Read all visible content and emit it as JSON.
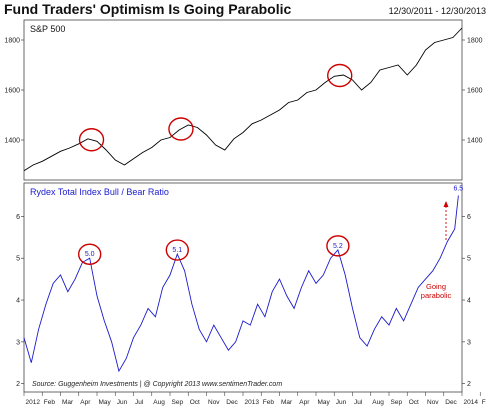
{
  "chart_data": [
    {
      "type": "line",
      "title": "Fund Traders' Optimism Is Going Parabolic",
      "date_range": "12/30/2011 - 12/30/2013",
      "panel_label": "S&P 500",
      "color": "#000000",
      "ylim": [
        1240,
        1880
      ],
      "yticks": [
        1400,
        1600,
        1800
      ],
      "x_start": "2012-01",
      "x_end": "2014-01",
      "x": [
        0,
        0.5,
        1,
        1.5,
        2,
        2.5,
        3,
        3.5,
        4,
        4.5,
        5,
        5.5,
        6,
        6.5,
        7,
        7.5,
        8,
        8.5,
        9,
        9.5,
        10,
        10.5,
        11,
        11.5,
        12,
        12.5,
        13,
        13.5,
        14,
        14.5,
        15,
        15.5,
        16,
        16.5,
        17,
        17.5,
        18,
        18.5,
        19,
        19.5,
        20,
        20.5,
        21,
        21.5,
        22,
        22.5,
        23,
        23.5,
        24
      ],
      "values": [
        1277,
        1300,
        1315,
        1335,
        1355,
        1368,
        1385,
        1405,
        1395,
        1360,
        1320,
        1300,
        1325,
        1350,
        1370,
        1400,
        1410,
        1440,
        1460,
        1450,
        1420,
        1380,
        1360,
        1405,
        1430,
        1465,
        1480,
        1500,
        1520,
        1550,
        1560,
        1590,
        1600,
        1630,
        1655,
        1660,
        1640,
        1600,
        1630,
        1680,
        1690,
        1700,
        1660,
        1700,
        1760,
        1790,
        1800,
        1810,
        1848
      ],
      "highlights": [
        3.7,
        8.6,
        17.3
      ]
    },
    {
      "type": "line",
      "panel_label": "Rydex Total Index Bull / Bear Ratio",
      "color": "#1a1acc",
      "ylim": [
        1.8,
        6.8
      ],
      "yticks": [
        2,
        3,
        4,
        5,
        6
      ],
      "x_start": "2012-01",
      "x_end": "2014-01",
      "x": [
        0,
        0.4,
        0.8,
        1.2,
        1.6,
        2.0,
        2.4,
        2.8,
        3.2,
        3.6,
        4.0,
        4.4,
        4.8,
        5.2,
        5.6,
        6.0,
        6.4,
        6.8,
        7.2,
        7.6,
        8.0,
        8.4,
        8.8,
        9.2,
        9.6,
        10.0,
        10.4,
        10.8,
        11.2,
        11.6,
        12.0,
        12.4,
        12.8,
        13.2,
        13.6,
        14.0,
        14.4,
        14.8,
        15.2,
        15.6,
        16.0,
        16.4,
        16.8,
        17.2,
        17.6,
        18.0,
        18.4,
        18.8,
        19.2,
        19.6,
        20.0,
        20.4,
        20.8,
        21.2,
        21.6,
        22.0,
        22.4,
        22.8,
        23.2,
        23.6,
        23.8
      ],
      "values": [
        3.1,
        2.5,
        3.3,
        3.9,
        4.4,
        4.6,
        4.2,
        4.5,
        4.9,
        5.0,
        4.1,
        3.5,
        3.0,
        2.3,
        2.6,
        3.1,
        3.4,
        3.8,
        3.6,
        4.3,
        4.6,
        5.1,
        4.7,
        3.9,
        3.3,
        3.0,
        3.4,
        3.1,
        2.8,
        3.0,
        3.5,
        3.4,
        3.9,
        3.6,
        4.2,
        4.5,
        4.1,
        3.8,
        4.3,
        4.7,
        4.4,
        4.6,
        5.0,
        5.2,
        4.6,
        3.8,
        3.1,
        2.9,
        3.3,
        3.6,
        3.4,
        3.8,
        3.5,
        3.9,
        4.3,
        4.5,
        4.7,
        5.0,
        5.4,
        5.7,
        6.5
      ],
      "peak_labels": [
        {
          "x": 3.6,
          "y": 5.0,
          "label": "5.0"
        },
        {
          "x": 8.4,
          "y": 5.1,
          "label": "5.1"
        },
        {
          "x": 17.2,
          "y": 5.2,
          "label": "5.2"
        },
        {
          "x": 23.8,
          "y": 6.5,
          "label": "6.5"
        }
      ],
      "annotation": {
        "text_line1": "Going",
        "text_line2": "parabolic"
      },
      "x_tick_labels": [
        "2012",
        "Feb",
        "Mar",
        "Apr",
        "May",
        "Jun",
        "Jul",
        "Aug",
        "Sep",
        "Oct",
        "Nov",
        "Dec",
        "2013",
        "Feb",
        "Mar",
        "Apr",
        "May",
        "Jun",
        "Jul",
        "Aug",
        "Sep",
        "Oct",
        "Nov",
        "Dec",
        "2014",
        "F"
      ]
    }
  ],
  "footer": {
    "source": "Source:  Guggenheim Investments   |   @ Copyright 2013   www.sentimenTrader.com"
  },
  "colors": {
    "highlight": "#cc0000",
    "series_blue": "#1a1acc",
    "series_black": "#000000"
  }
}
